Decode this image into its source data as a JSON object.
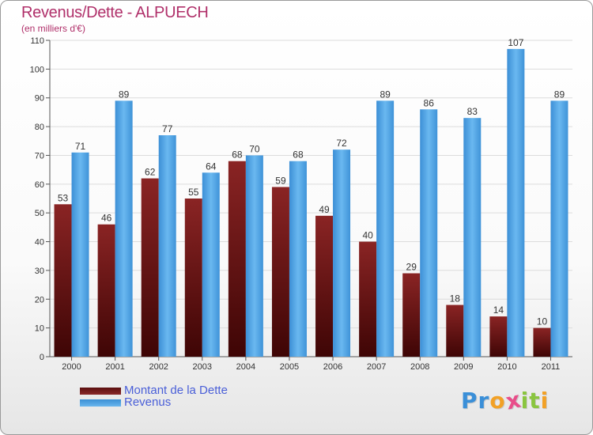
{
  "chart_data": {
    "type": "bar",
    "title": "Revenus/Dette - ALPUECH",
    "subtitle": "(en milliers d'€)",
    "categories": [
      "2000",
      "2001",
      "2002",
      "2003",
      "2004",
      "2005",
      "2006",
      "2007",
      "2008",
      "2009",
      "2010",
      "2011"
    ],
    "series": [
      {
        "name": "Montant de la Dette",
        "values": [
          53,
          46,
          62,
          55,
          68,
          59,
          49,
          40,
          29,
          18,
          14,
          10
        ],
        "color": "#7a1c1c"
      },
      {
        "name": "Revenus",
        "values": [
          71,
          89,
          77,
          64,
          70,
          68,
          72,
          89,
          86,
          83,
          107,
          89
        ],
        "color": "#4aa3e6"
      }
    ],
    "ylim": [
      0,
      110
    ],
    "yticks": [
      "0",
      "10",
      "20",
      "30",
      "40",
      "50",
      "60",
      "70",
      "80",
      "90",
      "100",
      "110"
    ],
    "grid": true,
    "legend_position": "bottom-left"
  },
  "brand": {
    "letters": [
      "P",
      "r",
      "o",
      "x",
      "i",
      "t",
      "i"
    ],
    "colors": [
      "#3a8fd8",
      "#3a8fd8",
      "#f2a126",
      "#e84e8a",
      "#8ac53f",
      "#8ac53f",
      "#f2a126"
    ]
  }
}
